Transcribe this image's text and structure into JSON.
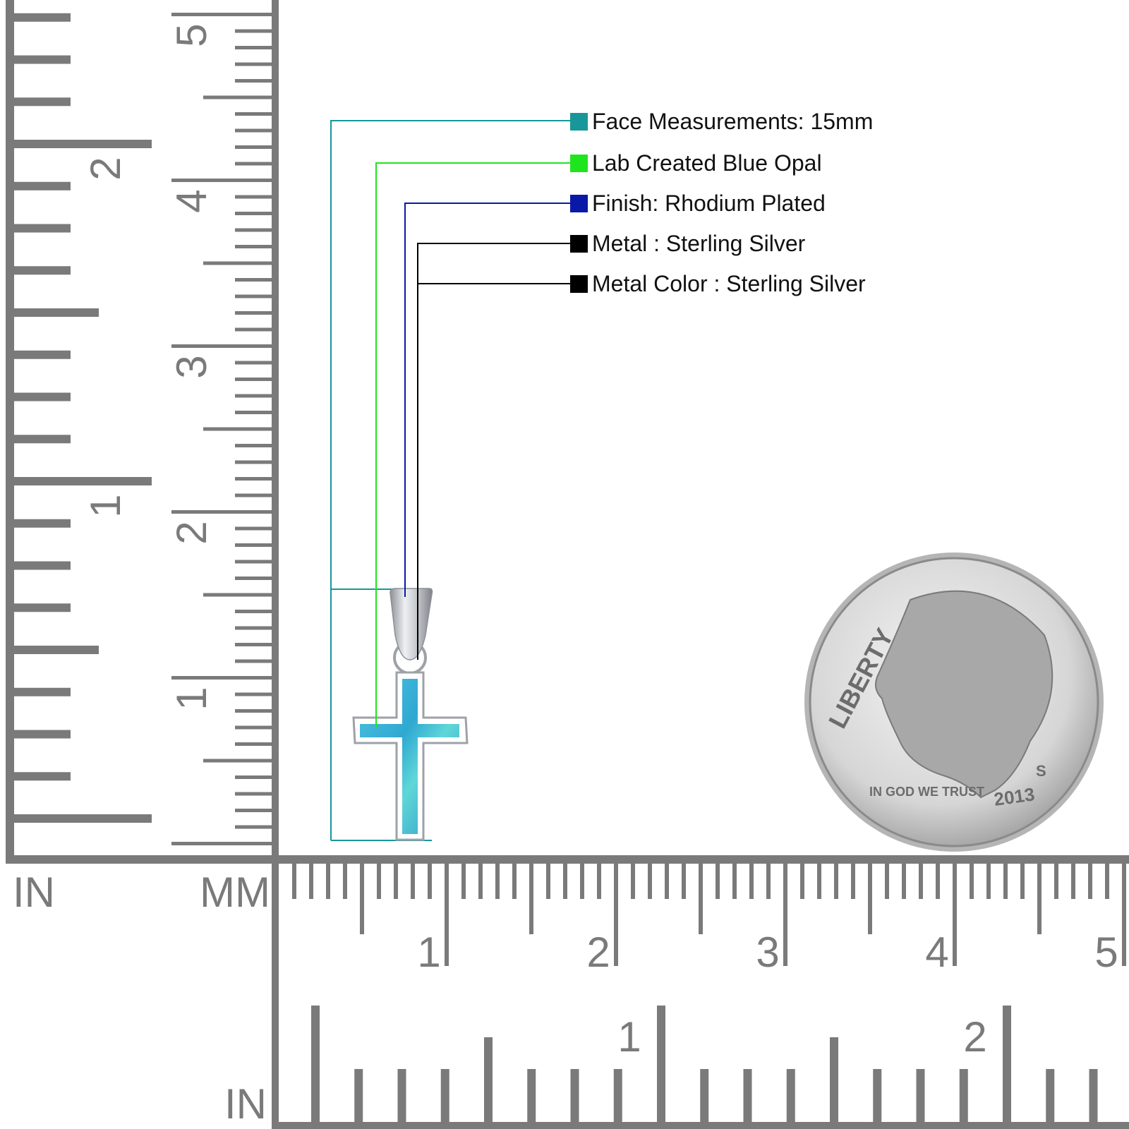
{
  "legend": [
    {
      "label": "Face Measurements: 15mm",
      "color": "#17979a"
    },
    {
      "label": "Lab Created Blue Opal",
      "color": "#1fe51f"
    },
    {
      "label": "Finish: Rhodium Plated",
      "color": "#0a18a8"
    },
    {
      "label": "Metal : Sterling Silver",
      "color": "#000000"
    },
    {
      "label": "Metal Color : Sterling Silver",
      "color": "#000000"
    }
  ],
  "rulers": {
    "unit_in_left": "IN",
    "unit_mm": "MM",
    "unit_in_bottom": "IN",
    "vertical_mm_labels": [
      "1",
      "2",
      "3",
      "4",
      "5"
    ],
    "vertical_in_labels": [
      "1",
      "2"
    ],
    "horizontal_mm_labels": [
      "1",
      "2",
      "3",
      "4",
      "5"
    ],
    "horizontal_in_labels": [
      "1",
      "2"
    ],
    "color": "#7a7a7a"
  },
  "coin": {
    "legend_text": "LIBERTY",
    "motto": "IN GOD WE TRUST",
    "year": "2013",
    "mint_mark": "S"
  },
  "product": {
    "stone_color": "#3fb4d6",
    "metal_color": "#c9cdd2"
  }
}
